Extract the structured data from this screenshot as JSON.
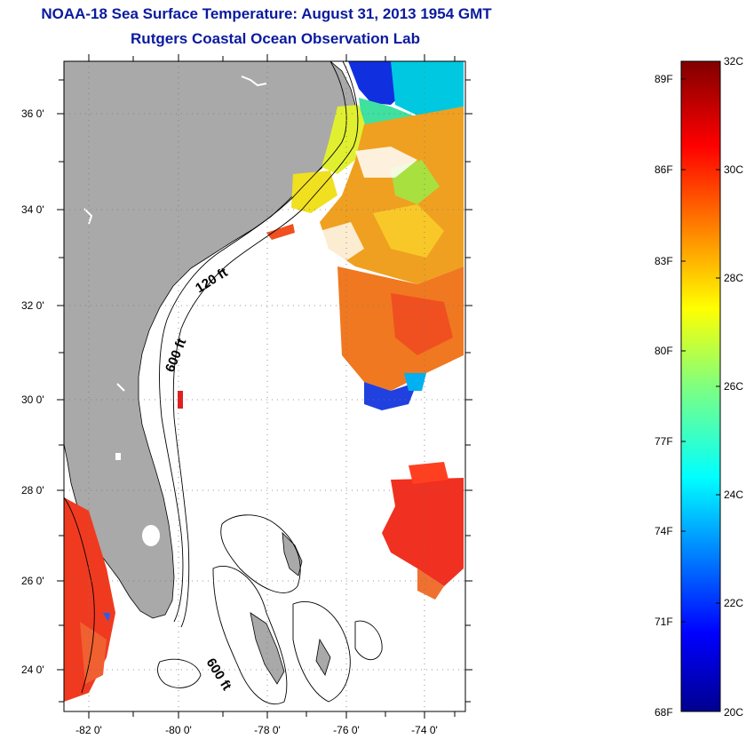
{
  "title": "NOAA-18 Sea Surface Temperature:  August 31, 2013 1954 GMT",
  "subtitle": "Rutgers Coastal Ocean Observation Lab",
  "map": {
    "lat_labels": [
      "36 0'",
      "34 0'",
      "32 0'",
      "30 0'",
      "28 0'",
      "26 0'",
      "24 0'"
    ],
    "lon_labels": [
      "-82 0'",
      "-80 0'",
      "-78 0'",
      "-76 0'",
      "-74 0'"
    ],
    "contour_labels": [
      "120 ft",
      "600 ft",
      "600 ft"
    ],
    "colors": {
      "land": "#a9a9a9",
      "ocean_missing": "#ffffff",
      "contour": "#000000"
    }
  },
  "colorbar": {
    "fahrenheit_labels": [
      "89F",
      "86F",
      "83F",
      "80F",
      "77F",
      "74F",
      "71F",
      "68F"
    ],
    "celsius_labels": [
      "32C",
      "30C",
      "28C",
      "26C",
      "24C",
      "22C",
      "20C"
    ],
    "colormap": "jet"
  }
}
